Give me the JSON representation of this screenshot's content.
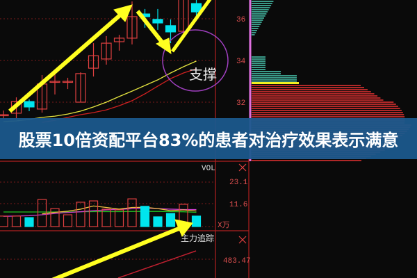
{
  "caption": "股票10倍资配平台83%的患者对治疗效果表示满意",
  "annotations": {
    "support_label": "支撑",
    "tracking_label": "主力追踪"
  },
  "colors": {
    "up": "#e04040",
    "down": "#00e5ee",
    "ma_short": "#e6e640",
    "ma_long": "#d02020",
    "arrow": "#ffff20",
    "circle": "#a040c0",
    "banner": "#1b588c"
  },
  "chart_data": [
    {
      "type": "candlestick",
      "title": "",
      "ylim": [
        29.17,
        36.9
      ],
      "yticks": [
        "36",
        "34",
        "32"
      ],
      "grid": true,
      "candles": [
        {
          "o": 31.4,
          "h": 31.6,
          "l": 31.2,
          "c": 31.4
        },
        {
          "o": 31.47,
          "h": 32.23,
          "l": 31.23,
          "c": 32.03
        },
        {
          "o": 32.03,
          "h": 32.13,
          "l": 31.57,
          "c": 31.77
        },
        {
          "o": 31.67,
          "h": 33.3,
          "l": 31.5,
          "c": 32.87
        },
        {
          "o": 33.0,
          "h": 33.33,
          "l": 32.37,
          "c": 33.0
        },
        {
          "o": 33.0,
          "h": 33.17,
          "l": 32.63,
          "c": 33.0
        },
        {
          "o": 32.0,
          "h": 33.43,
          "l": 32.0,
          "c": 33.37
        },
        {
          "o": 33.63,
          "h": 34.83,
          "l": 33.23,
          "c": 34.23
        },
        {
          "o": 34.07,
          "h": 35.17,
          "l": 33.8,
          "c": 34.83
        },
        {
          "o": 34.9,
          "h": 35.23,
          "l": 34.47,
          "c": 35.07
        },
        {
          "o": 35.07,
          "h": 36.83,
          "l": 34.77,
          "c": 36.1
        },
        {
          "o": 36.23,
          "h": 36.47,
          "l": 35.57,
          "c": 36.1
        },
        {
          "o": 35.97,
          "h": 36.47,
          "l": 35.47,
          "c": 35.8
        },
        {
          "o": 35.67,
          "h": 35.97,
          "l": 34.83,
          "c": 35.37
        },
        {
          "o": 35.4,
          "h": 37.07,
          "l": 35.3,
          "c": 37.07
        },
        {
          "o": 36.73,
          "h": 37.0,
          "l": 36.07,
          "c": 36.33
        }
      ],
      "ma_short": [
        31.07,
        31.1,
        31.17,
        31.27,
        31.33,
        31.43,
        31.57,
        31.77,
        32.0,
        32.27,
        32.53,
        32.8,
        33.07,
        33.4,
        33.7,
        33.97
      ],
      "ma_long": [
        null,
        null,
        null,
        31.03,
        31.13,
        31.27,
        31.4,
        31.5,
        31.63,
        31.83,
        32.07,
        32.4,
        32.77,
        33.13,
        33.4,
        33.6
      ]
    },
    {
      "type": "bar",
      "title": "VOL",
      "unit": "X万",
      "ylim": [
        0,
        28
      ],
      "yticks": [
        "23.1",
        "11.6"
      ],
      "values": [
        5.6,
        5.6,
        4.8,
        14.5,
        9.6,
        6.3,
        13.0,
        13.7,
        9.3,
        8.9,
        14.8,
        10.8,
        5.2,
        7.0,
        11.9,
        5.6
      ],
      "direction": [
        "up",
        "up",
        "down",
        "up",
        "up",
        "up",
        "up",
        "up",
        "up",
        "up",
        "up",
        "down",
        "down",
        "down",
        "up",
        "down"
      ],
      "ma_green": [
        7.8,
        7.8,
        7.8,
        7.8,
        7.8,
        7.8,
        7.9,
        8.0,
        8.0,
        8.0,
        8.1,
        8.1,
        8.1,
        8.0,
        7.9,
        7.6
      ],
      "ma_magenta": [
        5.5,
        5.6,
        5.8,
        6.3,
        7.0,
        7.5,
        7.9,
        8.5,
        8.9,
        9.2,
        9.5,
        9.9,
        9.6,
        9.3,
        9.1,
        9.1
      ],
      "ma_orange": [
        null,
        null,
        null,
        6.8,
        7.6,
        8.2,
        9.3,
        11.0,
        10.2,
        9.3,
        10.2,
        10.3,
        9.6,
        8.5,
        8.9,
        8.3
      ]
    },
    {
      "type": "line",
      "title": "主力追踪",
      "yticks": [
        "483.47"
      ]
    }
  ]
}
